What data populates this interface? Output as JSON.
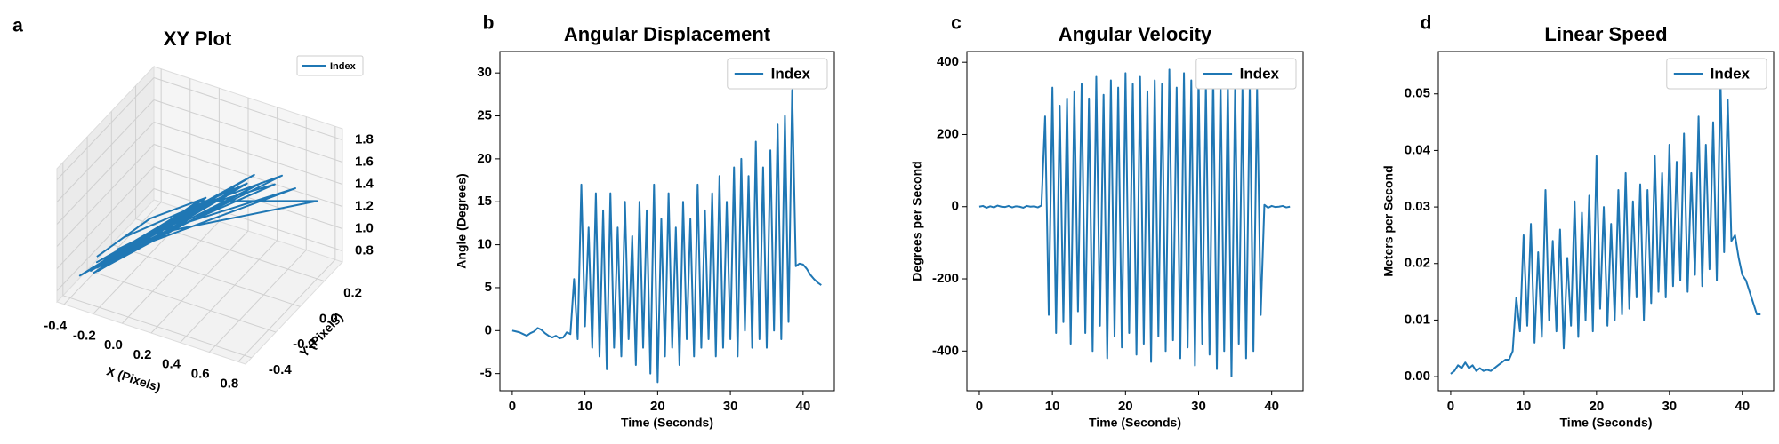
{
  "chart_data": [
    {
      "type": "line3d",
      "panel_label": "a",
      "title": "XY Plot",
      "xlabel": "X (Pixels)",
      "ylabel": "Y (Pixels)",
      "xlim": [
        -0.45,
        0.85
      ],
      "ylim": [
        -0.45,
        0.35
      ],
      "zlim": [
        0.7,
        1.9
      ],
      "xticks": [
        -0.4,
        -0.2,
        {
          "value": 0,
          "label": "0.0"
        },
        0.2,
        0.4,
        0.6,
        0.8
      ],
      "yticks": [
        -0.4,
        -0.2,
        {
          "value": 0,
          "label": "0.0"
        },
        0.2
      ],
      "zticks": [
        0.8,
        {
          "value": 1,
          "label": "1.0"
        },
        1.2,
        1.4,
        1.6,
        1.8
      ],
      "grid": true,
      "legend": "upper right",
      "series": [
        {
          "name": "Index",
          "color": "#1f77b4",
          "x": [
            -0.3,
            -0.1,
            0.2,
            -0.25,
            0.4,
            -0.2,
            0.1,
            0.6,
            -0.3,
            0.3,
            -0.15,
            0.5,
            -0.28,
            0.15,
            0.8,
            -0.1,
            0.35,
            -0.3,
            0.05,
            0.45,
            -0.2,
            0.25,
            -0.35,
            0.1,
            0.55,
            -0.25,
            0.0,
            0.3,
            -0.3,
            0.2,
            -0.05,
            0.4,
            -0.25,
            0.65,
            -0.1,
            0.15,
            -0.3,
            0.3,
            -0.2,
            0.05
          ],
          "y": [
            -0.3,
            -0.1,
            0.0,
            -0.35,
            0.1,
            -0.2,
            -0.05,
            0.15,
            -0.3,
            0.05,
            -0.25,
            0.1,
            -0.35,
            0.0,
            0.2,
            -0.15,
            0.05,
            -0.3,
            -0.1,
            0.1,
            -0.25,
            0.0,
            -0.38,
            -0.05,
            0.15,
            -0.3,
            -0.1,
            0.05,
            -0.35,
            0.0,
            -0.2,
            0.1,
            -0.3,
            0.2,
            -0.15,
            0.0,
            -0.35,
            0.05,
            -0.25,
            -0.1
          ],
          "z": [
            1.0,
            1.2,
            1.4,
            0.95,
            1.5,
            1.1,
            1.3,
            1.6,
            0.9,
            1.45,
            1.05,
            1.55,
            0.92,
            1.35,
            1.4,
            1.1,
            1.5,
            0.95,
            1.25,
            1.6,
            1.0,
            1.4,
            0.9,
            1.3,
            1.5,
            1.0,
            1.2,
            1.45,
            0.93,
            1.35,
            1.15,
            1.5,
            1.0,
            1.45,
            1.1,
            1.3,
            0.95,
            1.4,
            1.05,
            1.2
          ]
        }
      ]
    },
    {
      "type": "line",
      "panel_label": "b",
      "title": "Angular Displacement",
      "xlabel": "Time (Seconds)",
      "ylabel": "Angle (Degrees)",
      "xlim": [
        -1.7,
        44.3
      ],
      "ylim": [
        -7,
        32.5
      ],
      "xticks": [
        0,
        10,
        20,
        30,
        40
      ],
      "yticks": [
        -5,
        0,
        5,
        10,
        15,
        20,
        25,
        30
      ],
      "legend": "upper right",
      "x": [
        0,
        0.5,
        1,
        1.5,
        2,
        2.5,
        3,
        3.5,
        4,
        4.5,
        5,
        5.5,
        6,
        6.5,
        7,
        7.5,
        8,
        8.5,
        9,
        9.5,
        10,
        10.5,
        11,
        11.5,
        12,
        12.5,
        13,
        13.5,
        14,
        14.5,
        15,
        15.5,
        16,
        16.5,
        17,
        17.5,
        18,
        18.5,
        19,
        19.5,
        20,
        20.5,
        21,
        21.5,
        22,
        22.5,
        23,
        23.5,
        24,
        24.5,
        25,
        25.5,
        26,
        26.5,
        27,
        27.5,
        28,
        28.5,
        29,
        29.5,
        30,
        30.5,
        31,
        31.5,
        32,
        32.5,
        33,
        33.5,
        34,
        34.5,
        35,
        35.5,
        36,
        36.5,
        37,
        37.5,
        38,
        38.5,
        39,
        39.5,
        40,
        40.5,
        41,
        41.5,
        42,
        42.5
      ],
      "series": [
        {
          "name": "Index",
          "color": "#1f77b4",
          "values": [
            0,
            -0.1,
            -0.2,
            -0.4,
            -0.6,
            -0.3,
            -0.1,
            0.3,
            0.1,
            -0.3,
            -0.6,
            -0.8,
            -0.6,
            -0.9,
            -0.8,
            -0.2,
            -0.4,
            6,
            -1,
            17,
            0.5,
            12,
            -2,
            16,
            -3,
            14,
            -4.5,
            16,
            -2,
            12,
            -3,
            15,
            -1,
            11,
            -4,
            15,
            -2,
            14,
            -5,
            17,
            -6,
            13,
            -3,
            16,
            -2,
            12,
            -4,
            15,
            -1,
            13,
            -3,
            17,
            -2,
            14,
            -1,
            16,
            -3,
            18,
            -2,
            15,
            -1,
            19,
            -3,
            20,
            0,
            18,
            -2,
            22,
            -1,
            19,
            -2,
            21,
            0,
            24,
            -1,
            25,
            1,
            28,
            7.5,
            7.8,
            7.7,
            7.2,
            6.5,
            6,
            5.6,
            5.3
          ]
        }
      ]
    },
    {
      "type": "line",
      "panel_label": "c",
      "title": "Angular Velocity",
      "xlabel": "Time (Seconds)",
      "ylabel": "Degrees per Second",
      "xlim": [
        -1.7,
        44.3
      ],
      "ylim": [
        -510,
        430
      ],
      "xticks": [
        0,
        10,
        20,
        30,
        40
      ],
      "yticks": [
        -400,
        -200,
        0,
        200,
        400
      ],
      "legend": "upper right",
      "x": [
        0,
        0.5,
        1,
        1.5,
        2,
        2.5,
        3,
        3.5,
        4,
        4.5,
        5,
        5.5,
        6,
        6.5,
        7,
        7.5,
        8,
        8.5,
        9,
        9.5,
        10,
        10.5,
        11,
        11.5,
        12,
        12.5,
        13,
        13.5,
        14,
        14.5,
        15,
        15.5,
        16,
        16.5,
        17,
        17.5,
        18,
        18.5,
        19,
        19.5,
        20,
        20.5,
        21,
        21.5,
        22,
        22.5,
        23,
        23.5,
        24,
        24.5,
        25,
        25.5,
        26,
        26.5,
        27,
        27.5,
        28,
        28.5,
        29,
        29.5,
        30,
        30.5,
        31,
        31.5,
        32,
        32.5,
        33,
        33.5,
        34,
        34.5,
        35,
        35.5,
        36,
        36.5,
        37,
        37.5,
        38,
        38.5,
        39,
        39.5,
        40,
        40.5,
        41,
        41.5,
        42,
        42.5
      ],
      "series": [
        {
          "name": "Index",
          "color": "#1f77b4",
          "values": [
            0,
            2,
            -3,
            1,
            -2,
            3,
            0,
            -1,
            2,
            -2,
            1,
            0,
            -3,
            2,
            0,
            1,
            -2,
            3,
            250,
            -300,
            330,
            -350,
            280,
            -320,
            300,
            -380,
            320,
            -290,
            340,
            -350,
            300,
            -400,
            360,
            -330,
            310,
            -420,
            350,
            -360,
            330,
            -390,
            370,
            -350,
            340,
            -410,
            360,
            -380,
            320,
            -430,
            350,
            -360,
            340,
            -400,
            380,
            -370,
            330,
            -420,
            370,
            -390,
            350,
            -440,
            360,
            -380,
            340,
            -410,
            370,
            -450,
            360,
            -400,
            350,
            -470,
            340,
            -380,
            330,
            -420,
            340,
            -400,
            330,
            -300,
            5,
            -3,
            2,
            -1,
            0,
            2,
            -2,
            0
          ]
        }
      ]
    },
    {
      "type": "line",
      "panel_label": "d",
      "title": "Linear Speed",
      "xlabel": "Time (Seconds)",
      "ylabel": "Meters per Second",
      "xlim": [
        -1.7,
        44.3
      ],
      "ylim": [
        -0.0025,
        0.0575
      ],
      "xticks": [
        0,
        10,
        20,
        30,
        40
      ],
      "yticks": [
        {
          "value": 0,
          "label": "0.00"
        },
        0.01,
        0.02,
        0.03,
        0.04,
        0.05
      ],
      "legend": "upper right",
      "x": [
        0,
        0.5,
        1,
        1.5,
        2,
        2.5,
        3,
        3.5,
        4,
        4.5,
        5,
        5.5,
        6,
        6.5,
        7,
        7.5,
        8,
        8.5,
        9,
        9.5,
        10,
        10.5,
        11,
        11.5,
        12,
        12.5,
        13,
        13.5,
        14,
        14.5,
        15,
        15.5,
        16,
        16.5,
        17,
        17.5,
        18,
        18.5,
        19,
        19.5,
        20,
        20.5,
        21,
        21.5,
        22,
        22.5,
        23,
        23.5,
        24,
        24.5,
        25,
        25.5,
        26,
        26.5,
        27,
        27.5,
        28,
        28.5,
        29,
        29.5,
        30,
        30.5,
        31,
        31.5,
        32,
        32.5,
        33,
        33.5,
        34,
        34.5,
        35,
        35.5,
        36,
        36.5,
        37,
        37.5,
        38,
        38.5,
        39,
        39.5,
        40,
        40.5,
        41,
        41.5,
        42,
        42.5
      ],
      "series": [
        {
          "name": "Index",
          "color": "#1f77b4",
          "values": [
            0.0005,
            0.001,
            0.002,
            0.0015,
            0.0025,
            0.0015,
            0.002,
            0.001,
            0.0015,
            0.001,
            0.0012,
            0.001,
            0.0015,
            0.002,
            0.0025,
            0.003,
            0.003,
            0.0045,
            0.014,
            0.008,
            0.025,
            0.009,
            0.027,
            0.006,
            0.022,
            0.007,
            0.033,
            0.01,
            0.024,
            0.008,
            0.026,
            0.005,
            0.021,
            0.009,
            0.031,
            0.007,
            0.029,
            0.01,
            0.032,
            0.008,
            0.039,
            0.012,
            0.03,
            0.009,
            0.027,
            0.01,
            0.033,
            0.011,
            0.036,
            0.012,
            0.031,
            0.014,
            0.034,
            0.01,
            0.033,
            0.013,
            0.039,
            0.015,
            0.036,
            0.014,
            0.041,
            0.016,
            0.038,
            0.017,
            0.043,
            0.015,
            0.036,
            0.018,
            0.046,
            0.016,
            0.041,
            0.019,
            0.045,
            0.017,
            0.053,
            0.022,
            0.049,
            0.024,
            0.025,
            0.021,
            0.018,
            0.017,
            0.015,
            0.013,
            0.011,
            0.011
          ]
        }
      ]
    }
  ]
}
